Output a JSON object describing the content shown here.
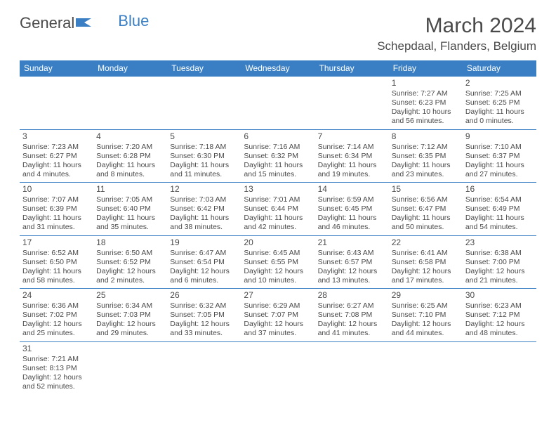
{
  "logo": {
    "text1": "General",
    "text2": "Blue"
  },
  "title": {
    "month": "March 2024",
    "location": "Schepdaal, Flanders, Belgium"
  },
  "colors": {
    "accent": "#3a7fc4",
    "text": "#4a4a4a",
    "bg": "#ffffff"
  },
  "weekdays": [
    "Sunday",
    "Monday",
    "Tuesday",
    "Wednesday",
    "Thursday",
    "Friday",
    "Saturday"
  ],
  "days": [
    null,
    null,
    null,
    null,
    null,
    {
      "n": "1",
      "sr": "Sunrise: 7:27 AM",
      "ss": "Sunset: 6:23 PM",
      "dl1": "Daylight: 10 hours",
      "dl2": "and 56 minutes."
    },
    {
      "n": "2",
      "sr": "Sunrise: 7:25 AM",
      "ss": "Sunset: 6:25 PM",
      "dl1": "Daylight: 11 hours",
      "dl2": "and 0 minutes."
    },
    {
      "n": "3",
      "sr": "Sunrise: 7:23 AM",
      "ss": "Sunset: 6:27 PM",
      "dl1": "Daylight: 11 hours",
      "dl2": "and 4 minutes."
    },
    {
      "n": "4",
      "sr": "Sunrise: 7:20 AM",
      "ss": "Sunset: 6:28 PM",
      "dl1": "Daylight: 11 hours",
      "dl2": "and 8 minutes."
    },
    {
      "n": "5",
      "sr": "Sunrise: 7:18 AM",
      "ss": "Sunset: 6:30 PM",
      "dl1": "Daylight: 11 hours",
      "dl2": "and 11 minutes."
    },
    {
      "n": "6",
      "sr": "Sunrise: 7:16 AM",
      "ss": "Sunset: 6:32 PM",
      "dl1": "Daylight: 11 hours",
      "dl2": "and 15 minutes."
    },
    {
      "n": "7",
      "sr": "Sunrise: 7:14 AM",
      "ss": "Sunset: 6:34 PM",
      "dl1": "Daylight: 11 hours",
      "dl2": "and 19 minutes."
    },
    {
      "n": "8",
      "sr": "Sunrise: 7:12 AM",
      "ss": "Sunset: 6:35 PM",
      "dl1": "Daylight: 11 hours",
      "dl2": "and 23 minutes."
    },
    {
      "n": "9",
      "sr": "Sunrise: 7:10 AM",
      "ss": "Sunset: 6:37 PM",
      "dl1": "Daylight: 11 hours",
      "dl2": "and 27 minutes."
    },
    {
      "n": "10",
      "sr": "Sunrise: 7:07 AM",
      "ss": "Sunset: 6:39 PM",
      "dl1": "Daylight: 11 hours",
      "dl2": "and 31 minutes."
    },
    {
      "n": "11",
      "sr": "Sunrise: 7:05 AM",
      "ss": "Sunset: 6:40 PM",
      "dl1": "Daylight: 11 hours",
      "dl2": "and 35 minutes."
    },
    {
      "n": "12",
      "sr": "Sunrise: 7:03 AM",
      "ss": "Sunset: 6:42 PM",
      "dl1": "Daylight: 11 hours",
      "dl2": "and 38 minutes."
    },
    {
      "n": "13",
      "sr": "Sunrise: 7:01 AM",
      "ss": "Sunset: 6:44 PM",
      "dl1": "Daylight: 11 hours",
      "dl2": "and 42 minutes."
    },
    {
      "n": "14",
      "sr": "Sunrise: 6:59 AM",
      "ss": "Sunset: 6:45 PM",
      "dl1": "Daylight: 11 hours",
      "dl2": "and 46 minutes."
    },
    {
      "n": "15",
      "sr": "Sunrise: 6:56 AM",
      "ss": "Sunset: 6:47 PM",
      "dl1": "Daylight: 11 hours",
      "dl2": "and 50 minutes."
    },
    {
      "n": "16",
      "sr": "Sunrise: 6:54 AM",
      "ss": "Sunset: 6:49 PM",
      "dl1": "Daylight: 11 hours",
      "dl2": "and 54 minutes."
    },
    {
      "n": "17",
      "sr": "Sunrise: 6:52 AM",
      "ss": "Sunset: 6:50 PM",
      "dl1": "Daylight: 11 hours",
      "dl2": "and 58 minutes."
    },
    {
      "n": "18",
      "sr": "Sunrise: 6:50 AM",
      "ss": "Sunset: 6:52 PM",
      "dl1": "Daylight: 12 hours",
      "dl2": "and 2 minutes."
    },
    {
      "n": "19",
      "sr": "Sunrise: 6:47 AM",
      "ss": "Sunset: 6:54 PM",
      "dl1": "Daylight: 12 hours",
      "dl2": "and 6 minutes."
    },
    {
      "n": "20",
      "sr": "Sunrise: 6:45 AM",
      "ss": "Sunset: 6:55 PM",
      "dl1": "Daylight: 12 hours",
      "dl2": "and 10 minutes."
    },
    {
      "n": "21",
      "sr": "Sunrise: 6:43 AM",
      "ss": "Sunset: 6:57 PM",
      "dl1": "Daylight: 12 hours",
      "dl2": "and 13 minutes."
    },
    {
      "n": "22",
      "sr": "Sunrise: 6:41 AM",
      "ss": "Sunset: 6:58 PM",
      "dl1": "Daylight: 12 hours",
      "dl2": "and 17 minutes."
    },
    {
      "n": "23",
      "sr": "Sunrise: 6:38 AM",
      "ss": "Sunset: 7:00 PM",
      "dl1": "Daylight: 12 hours",
      "dl2": "and 21 minutes."
    },
    {
      "n": "24",
      "sr": "Sunrise: 6:36 AM",
      "ss": "Sunset: 7:02 PM",
      "dl1": "Daylight: 12 hours",
      "dl2": "and 25 minutes."
    },
    {
      "n": "25",
      "sr": "Sunrise: 6:34 AM",
      "ss": "Sunset: 7:03 PM",
      "dl1": "Daylight: 12 hours",
      "dl2": "and 29 minutes."
    },
    {
      "n": "26",
      "sr": "Sunrise: 6:32 AM",
      "ss": "Sunset: 7:05 PM",
      "dl1": "Daylight: 12 hours",
      "dl2": "and 33 minutes."
    },
    {
      "n": "27",
      "sr": "Sunrise: 6:29 AM",
      "ss": "Sunset: 7:07 PM",
      "dl1": "Daylight: 12 hours",
      "dl2": "and 37 minutes."
    },
    {
      "n": "28",
      "sr": "Sunrise: 6:27 AM",
      "ss": "Sunset: 7:08 PM",
      "dl1": "Daylight: 12 hours",
      "dl2": "and 41 minutes."
    },
    {
      "n": "29",
      "sr": "Sunrise: 6:25 AM",
      "ss": "Sunset: 7:10 PM",
      "dl1": "Daylight: 12 hours",
      "dl2": "and 44 minutes."
    },
    {
      "n": "30",
      "sr": "Sunrise: 6:23 AM",
      "ss": "Sunset: 7:12 PM",
      "dl1": "Daylight: 12 hours",
      "dl2": "and 48 minutes."
    },
    {
      "n": "31",
      "sr": "Sunrise: 7:21 AM",
      "ss": "Sunset: 8:13 PM",
      "dl1": "Daylight: 12 hours",
      "dl2": "and 52 minutes."
    },
    null,
    null,
    null,
    null,
    null,
    null
  ]
}
